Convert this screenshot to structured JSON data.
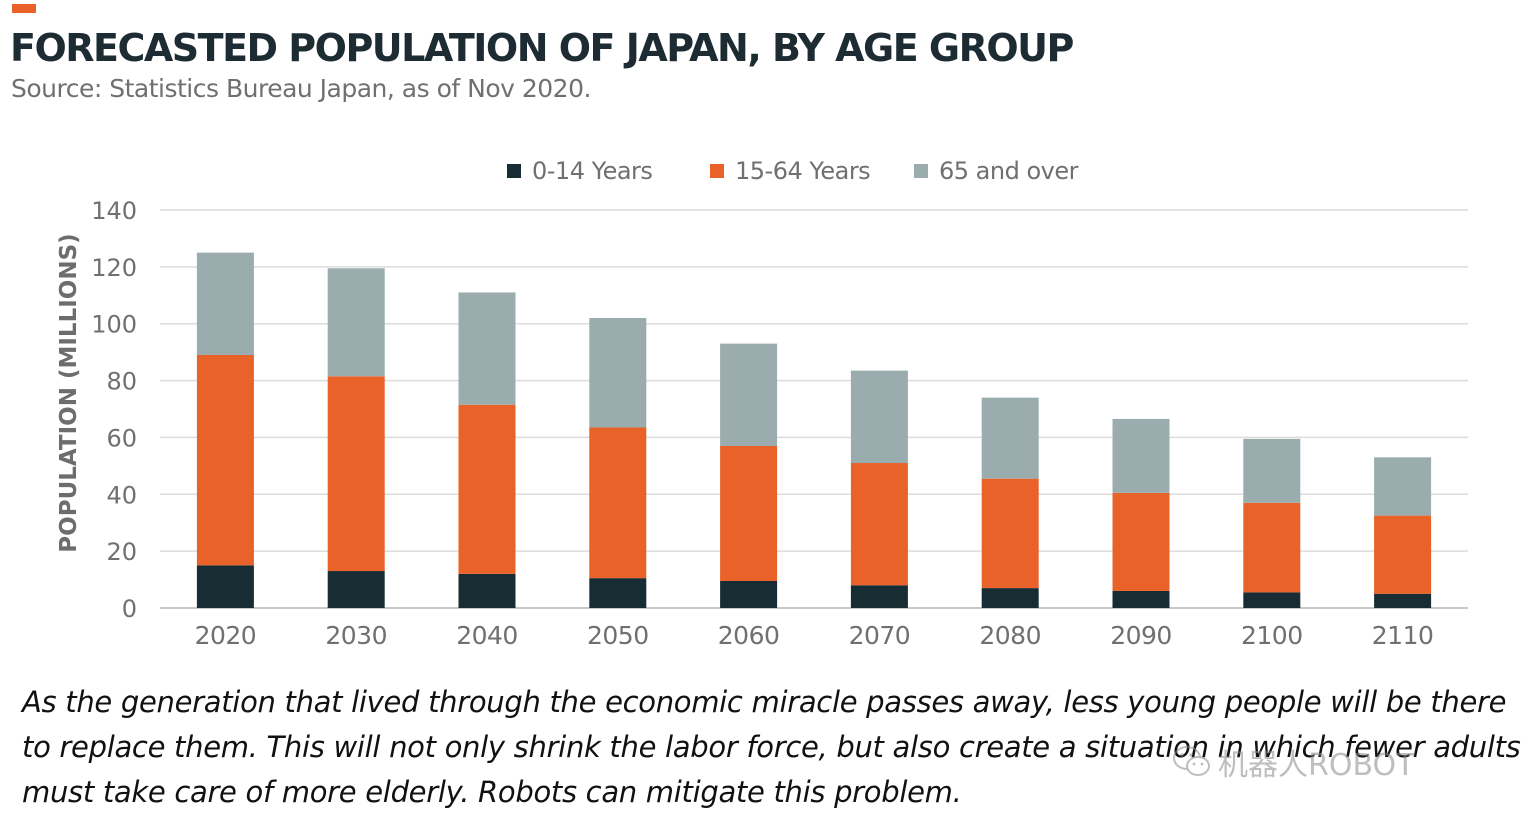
{
  "header": {
    "title": "FORECASTED POPULATION OF JAPAN, BY AGE GROUP",
    "subtitle": "Source: Statistics Bureau Japan, as of Nov 2020.",
    "accent_color": "#e8622a"
  },
  "chart_data": {
    "type": "bar",
    "stacked": true,
    "categories": [
      "2020",
      "2030",
      "2040",
      "2050",
      "2060",
      "2070",
      "2080",
      "2090",
      "2100",
      "2110"
    ],
    "series": [
      {
        "name": "0-14 Years",
        "color": "#172d33",
        "values": [
          15,
          13,
          12,
          10.5,
          9.5,
          8,
          7,
          6,
          5.5,
          5
        ]
      },
      {
        "name": "15-64 Years",
        "color": "#e8622a",
        "values": [
          74,
          68.5,
          59.5,
          53,
          47.5,
          43,
          38.5,
          34.5,
          31.5,
          27.5
        ]
      },
      {
        "name": "65 and over",
        "color": "#9aacad",
        "values": [
          36,
          38,
          39.5,
          38.5,
          36,
          32.5,
          28.5,
          26,
          22.5,
          20.5
        ]
      }
    ],
    "ylabel": "POPULATION (MILLIONS)",
    "xlabel": "",
    "ylim": [
      0,
      140
    ],
    "yticks": [
      0,
      20,
      40,
      60,
      80,
      100,
      120,
      140
    ],
    "grid": true,
    "legend_position": "top-center"
  },
  "caption": {
    "text": "As the generation that lived through the economic miracle passes away, less young people will be there to replace them. This will not only shrink the labor force, but also create a situation in which fewer adults must take care of more elderly. Robots can mitigate this problem."
  },
  "watermark": {
    "text": "机器人ROBOT",
    "icon": "wechat-icon"
  }
}
